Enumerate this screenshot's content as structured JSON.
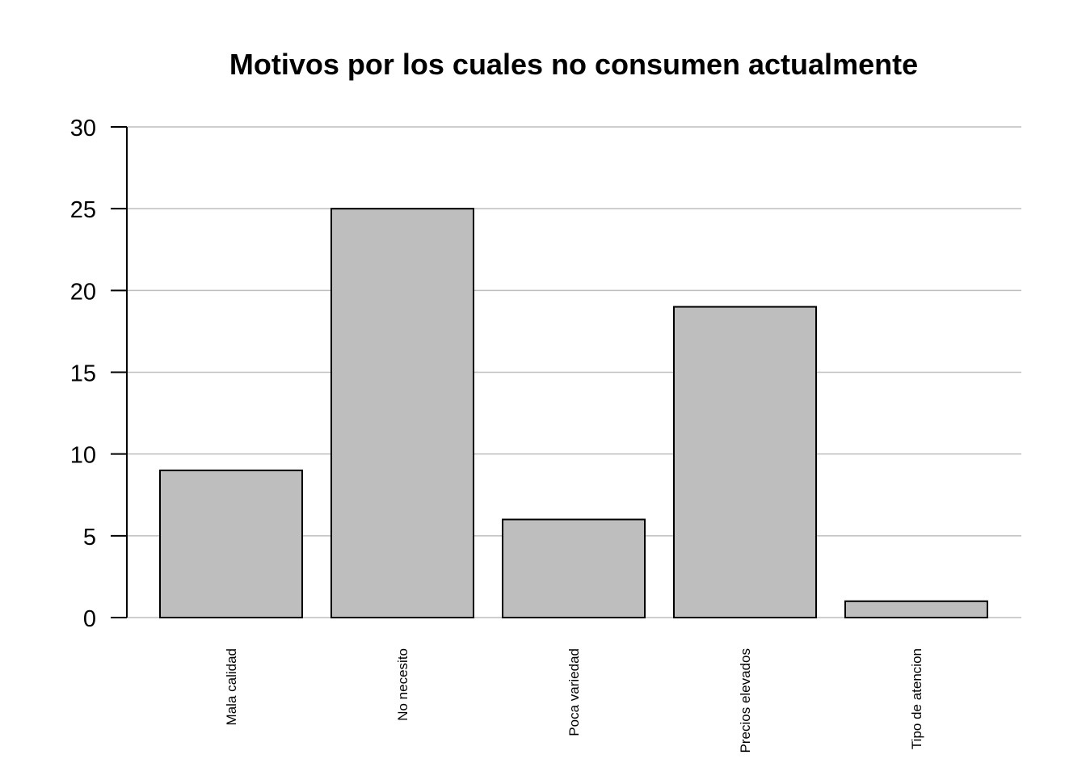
{
  "chart_data": {
    "type": "bar",
    "title": "Motivos por los cuales no consumen actualmente",
    "xlabel": "",
    "ylabel": "",
    "categories": [
      "Mala calidad",
      "No necesito",
      "Poca variedad",
      "Precios elevados",
      "Tipo de atencion"
    ],
    "values": [
      9,
      25,
      6,
      19,
      1
    ],
    "ylim": [
      0,
      30
    ],
    "yticks": [
      "0",
      "5",
      "10",
      "15",
      "20",
      "25",
      "30"
    ],
    "grid": true,
    "colors": {
      "bar_fill": "#bebebe",
      "bar_stroke": "#000000",
      "grid": "#bebebe",
      "axis": "#000000"
    }
  }
}
